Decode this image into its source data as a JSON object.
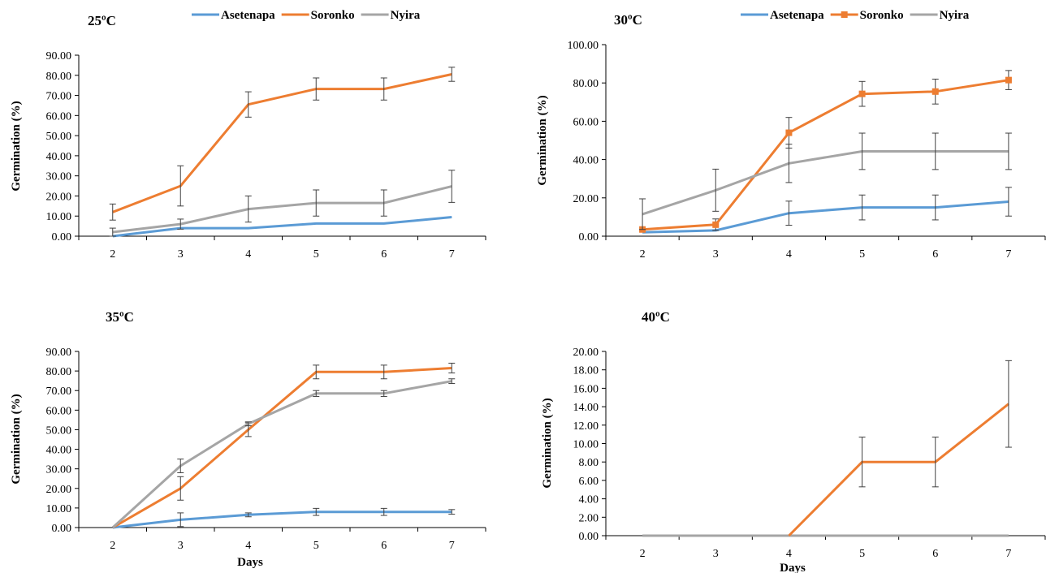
{
  "chart_data": [
    {
      "type": "line",
      "title": "25ºC",
      "xlabel": "",
      "ylabel": "Germination (%)",
      "x": [
        2,
        3,
        4,
        5,
        6,
        7
      ],
      "ylim": [
        0,
        90
      ],
      "ytick_step": 10,
      "ytick_decimals": 2,
      "legend": "top",
      "series": [
        {
          "name": "Asetenapa",
          "color": "#5B9BD5",
          "marker": "none",
          "values": [
            0.0,
            4.0,
            4.0,
            6.3,
            6.3,
            9.5
          ],
          "errors": [
            0,
            0,
            0,
            0,
            0,
            0
          ]
        },
        {
          "name": "Soronko",
          "color": "#ED7D31",
          "marker": "none",
          "values": [
            12.0,
            25.0,
            65.5,
            73.2,
            73.2,
            80.5
          ],
          "errors": [
            4.0,
            10.0,
            6.3,
            5.5,
            5.5,
            3.5
          ]
        },
        {
          "name": "Nyira",
          "color": "#A5A5A5",
          "marker": "none",
          "values": [
            2.0,
            6.0,
            13.5,
            16.5,
            16.5,
            24.8
          ],
          "errors": [
            2.0,
            2.5,
            6.5,
            6.5,
            6.5,
            8.0
          ]
        }
      ]
    },
    {
      "type": "line",
      "title": "30ºC",
      "xlabel": "",
      "ylabel": "Germination (%)",
      "x": [
        2,
        3,
        4,
        5,
        6,
        7
      ],
      "ylim": [
        0,
        100
      ],
      "ytick_step": 20,
      "ytick_decimals": 2,
      "legend": "top",
      "series": [
        {
          "name": "Asetenapa",
          "color": "#5B9BD5",
          "marker": "none",
          "values": [
            2.0,
            3.0,
            12.0,
            15.0,
            15.0,
            18.0
          ],
          "errors": [
            0,
            0,
            6.3,
            6.5,
            6.5,
            7.5
          ]
        },
        {
          "name": "Soronko",
          "color": "#ED7D31",
          "marker": "square",
          "values": [
            3.5,
            6.0,
            54.0,
            74.3,
            75.5,
            81.5
          ],
          "errors": [
            0,
            3.0,
            8.0,
            6.5,
            6.5,
            5.0
          ]
        },
        {
          "name": "Nyira",
          "color": "#A5A5A5",
          "marker": "none",
          "values": [
            11.5,
            24.0,
            38.0,
            44.3,
            44.3,
            44.3
          ],
          "errors": [
            8.0,
            11.0,
            10.0,
            9.5,
            9.5,
            9.5
          ]
        }
      ]
    },
    {
      "type": "line",
      "title": "35ºC",
      "xlabel": "Days",
      "ylabel": "Germination (%)",
      "x": [
        2,
        3,
        4,
        5,
        6,
        7
      ],
      "ylim": [
        0,
        90
      ],
      "ytick_step": 10,
      "ytick_decimals": 2,
      "legend": "",
      "series": [
        {
          "name": "Asetenapa",
          "color": "#5B9BD5",
          "marker": "none",
          "values": [
            0.0,
            4.0,
            6.5,
            8.0,
            8.0,
            8.0
          ],
          "errors": [
            0,
            3.5,
            1.0,
            1.8,
            1.8,
            1.2
          ]
        },
        {
          "name": "Soronko",
          "color": "#ED7D31",
          "marker": "none",
          "values": [
            0.0,
            20.0,
            50.0,
            79.5,
            79.5,
            81.5
          ],
          "errors": [
            0,
            6.0,
            3.5,
            3.5,
            3.5,
            2.5
          ]
        },
        {
          "name": "Nyira",
          "color": "#A5A5A5",
          "marker": "none",
          "values": [
            0.0,
            31.5,
            53.0,
            68.5,
            68.5,
            74.8
          ],
          "errors": [
            0,
            3.5,
            1.0,
            1.5,
            1.5,
            1.2
          ]
        }
      ]
    },
    {
      "type": "line",
      "title": "40ºC",
      "xlabel": "Days",
      "ylabel": "Germination (%)",
      "x": [
        2,
        3,
        4,
        5,
        6,
        7
      ],
      "ylim": [
        0,
        20
      ],
      "ytick_step": 2,
      "ytick_decimals": 2,
      "legend": "",
      "series": [
        {
          "name": "Nyira",
          "color": "#A5A5A5",
          "marker": "none",
          "values": [
            0,
            0,
            0,
            0,
            0,
            0
          ],
          "errors": [
            0,
            0,
            0,
            0,
            0,
            0
          ]
        },
        {
          "name": "Soronko",
          "color": "#ED7D31",
          "marker": "none",
          "values": [
            null,
            null,
            0.0,
            8.0,
            8.0,
            14.3
          ],
          "errors": [
            0,
            0,
            0,
            2.7,
            2.7,
            4.7
          ]
        }
      ]
    }
  ]
}
